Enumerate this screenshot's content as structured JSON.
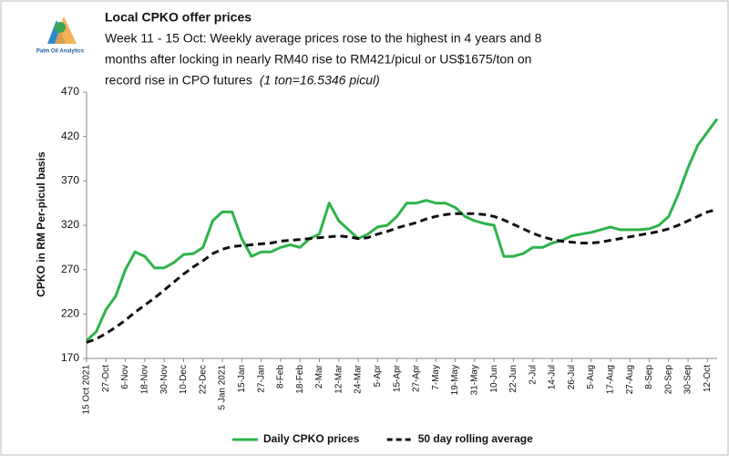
{
  "chart_data": {
    "type": "line",
    "logo_text": "Palm Oil Analytics",
    "title": "Local CPKO offer prices",
    "subtitle_lines": [
      "Week 11 - 15 Oct: Weekly average prices rose to the highest in 4 years and 8",
      "months after locking in nearly RM40 rise to RM421/picul or US$1675/ton on",
      "record rise in CPO futures"
    ],
    "note": "(1 ton=16.5346 picul)",
    "y_label": "CPKO in RM Per-picul basis",
    "ylim": [
      170,
      470
    ],
    "yticks": [
      170,
      220,
      270,
      320,
      370,
      420,
      470
    ],
    "grid": false,
    "legend": "bottom",
    "categories": [
      "15 Oct 2021",
      null,
      "27-Oct",
      null,
      "6-Nov",
      null,
      "18-Nov",
      null,
      "30-Nov",
      null,
      "10-Dec",
      null,
      "22-Dec",
      null,
      "5 Jan 2021",
      null,
      "15-Jan",
      null,
      "27-Jan",
      null,
      "8-Feb",
      null,
      "18-Feb",
      null,
      "2-Mar",
      null,
      "12-Mar",
      null,
      "24-Mar",
      null,
      "5-Apr",
      null,
      "15-Apr",
      null,
      "27-Apr",
      null,
      "7-May",
      null,
      "19-May",
      null,
      "31-May",
      null,
      "10-Jun",
      null,
      "22-Jun",
      null,
      "2-Jul",
      null,
      "14-Jul",
      null,
      "26-Jul",
      null,
      "5-Aug",
      null,
      "17-Aug",
      null,
      "27-Aug",
      null,
      "8-Sep",
      null,
      "20-Sep",
      null,
      "30-Sep",
      null,
      "12-Oct",
      null
    ],
    "series": [
      {
        "name": "Daily CPKO prices",
        "color": "#2db34a",
        "dashed": false,
        "values": [
          190,
          200,
          225,
          240,
          270,
          290,
          285,
          272,
          272,
          278,
          287,
          288,
          295,
          325,
          335,
          335,
          305,
          285,
          290,
          290,
          295,
          298,
          295,
          305,
          310,
          345,
          325,
          315,
          305,
          310,
          318,
          320,
          330,
          345,
          345,
          348,
          345,
          345,
          340,
          330,
          325,
          322,
          320,
          285,
          285,
          288,
          295,
          295,
          300,
          303,
          308,
          310,
          312,
          315,
          318,
          315,
          315,
          315,
          316,
          320,
          330,
          355,
          385,
          410,
          425,
          440
        ]
      },
      {
        "name": "50 day rolling average",
        "color": "#111111",
        "dashed": true,
        "values": [
          188,
          192,
          198,
          205,
          213,
          222,
          230,
          238,
          247,
          256,
          265,
          273,
          280,
          288,
          293,
          296,
          297,
          298,
          299,
          300,
          302,
          303,
          304,
          305,
          306,
          307,
          308,
          307,
          305,
          306,
          310,
          313,
          317,
          320,
          323,
          327,
          330,
          332,
          333,
          333,
          333,
          332,
          330,
          326,
          321,
          316,
          311,
          307,
          304,
          302,
          301,
          300,
          300,
          301,
          303,
          305,
          307,
          309,
          311,
          313,
          316,
          320,
          325,
          330,
          335,
          338
        ]
      }
    ]
  }
}
